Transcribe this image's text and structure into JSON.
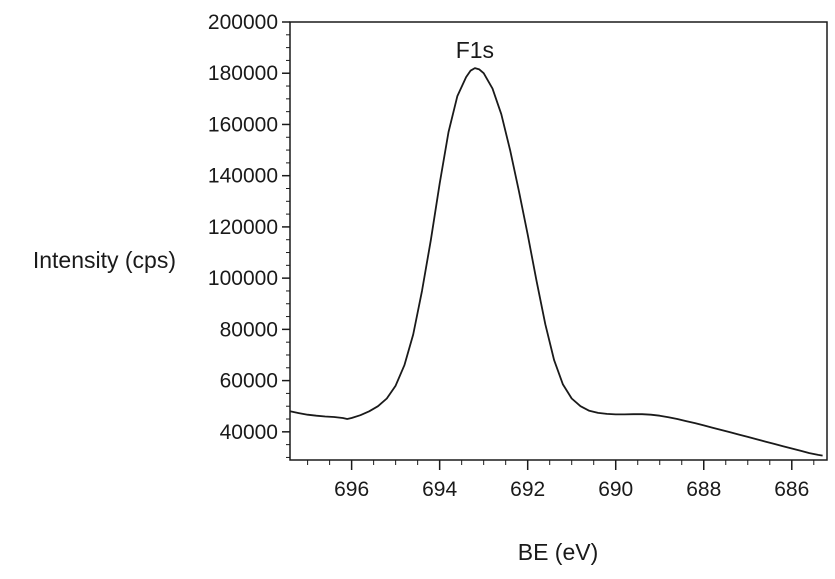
{
  "chart_data": {
    "type": "line",
    "xlabel": "BE (eV)",
    "ylabel": "Intensity (cps)",
    "xlim": [
      697.4,
      685.2
    ],
    "ylim": [
      29000,
      200000
    ],
    "x_reversed": true,
    "x_ticks": [
      696,
      694,
      692,
      690,
      688,
      686
    ],
    "x_tick_labels": [
      "696",
      "694",
      "692",
      "690",
      "688",
      "686"
    ],
    "y_ticks": [
      40000,
      60000,
      80000,
      100000,
      120000,
      140000,
      160000,
      180000,
      200000
    ],
    "y_tick_labels": [
      "40000",
      "60000",
      "80000",
      "100000",
      "120000",
      "140000",
      "160000",
      "180000",
      "200000"
    ],
    "grid": false,
    "annotations": [
      {
        "text": "F1s",
        "x": 693.2,
        "y": 186000
      }
    ],
    "series": [
      {
        "color": "#1a1a1a",
        "points": [
          [
            697.4,
            48000
          ],
          [
            697.2,
            47300
          ],
          [
            697.0,
            46700
          ],
          [
            696.8,
            46300
          ],
          [
            696.6,
            46000
          ],
          [
            696.4,
            45800
          ],
          [
            696.2,
            45400
          ],
          [
            696.1,
            45000
          ],
          [
            696.0,
            45400
          ],
          [
            695.8,
            46500
          ],
          [
            695.6,
            48000
          ],
          [
            695.4,
            50000
          ],
          [
            695.2,
            53000
          ],
          [
            695.0,
            58000
          ],
          [
            694.8,
            66000
          ],
          [
            694.6,
            78000
          ],
          [
            694.4,
            95000
          ],
          [
            694.2,
            115000
          ],
          [
            694.0,
            137000
          ],
          [
            693.8,
            157000
          ],
          [
            693.6,
            171000
          ],
          [
            693.4,
            178500
          ],
          [
            693.3,
            181000
          ],
          [
            693.2,
            182000
          ],
          [
            693.1,
            181500
          ],
          [
            693.0,
            180000
          ],
          [
            692.8,
            174000
          ],
          [
            692.6,
            164000
          ],
          [
            692.4,
            150000
          ],
          [
            692.2,
            134000
          ],
          [
            692.0,
            117000
          ],
          [
            691.8,
            99000
          ],
          [
            691.6,
            82000
          ],
          [
            691.4,
            68000
          ],
          [
            691.2,
            58500
          ],
          [
            691.0,
            53000
          ],
          [
            690.8,
            50000
          ],
          [
            690.6,
            48200
          ],
          [
            690.4,
            47400
          ],
          [
            690.2,
            47000
          ],
          [
            690.0,
            46800
          ],
          [
            689.8,
            46800
          ],
          [
            689.6,
            46900
          ],
          [
            689.4,
            46900
          ],
          [
            689.2,
            46700
          ],
          [
            689.0,
            46300
          ],
          [
            688.8,
            45700
          ],
          [
            688.6,
            45000
          ],
          [
            688.4,
            44200
          ],
          [
            688.2,
            43400
          ],
          [
            688.0,
            42500
          ],
          [
            687.8,
            41600
          ],
          [
            687.6,
            40700
          ],
          [
            687.4,
            39800
          ],
          [
            687.2,
            38900
          ],
          [
            687.0,
            38000
          ],
          [
            686.8,
            37100
          ],
          [
            686.6,
            36200
          ],
          [
            686.4,
            35300
          ],
          [
            686.2,
            34400
          ],
          [
            686.0,
            33500
          ],
          [
            685.8,
            32600
          ],
          [
            685.6,
            31700
          ],
          [
            685.4,
            31000
          ],
          [
            685.3,
            30700
          ]
        ]
      }
    ]
  }
}
